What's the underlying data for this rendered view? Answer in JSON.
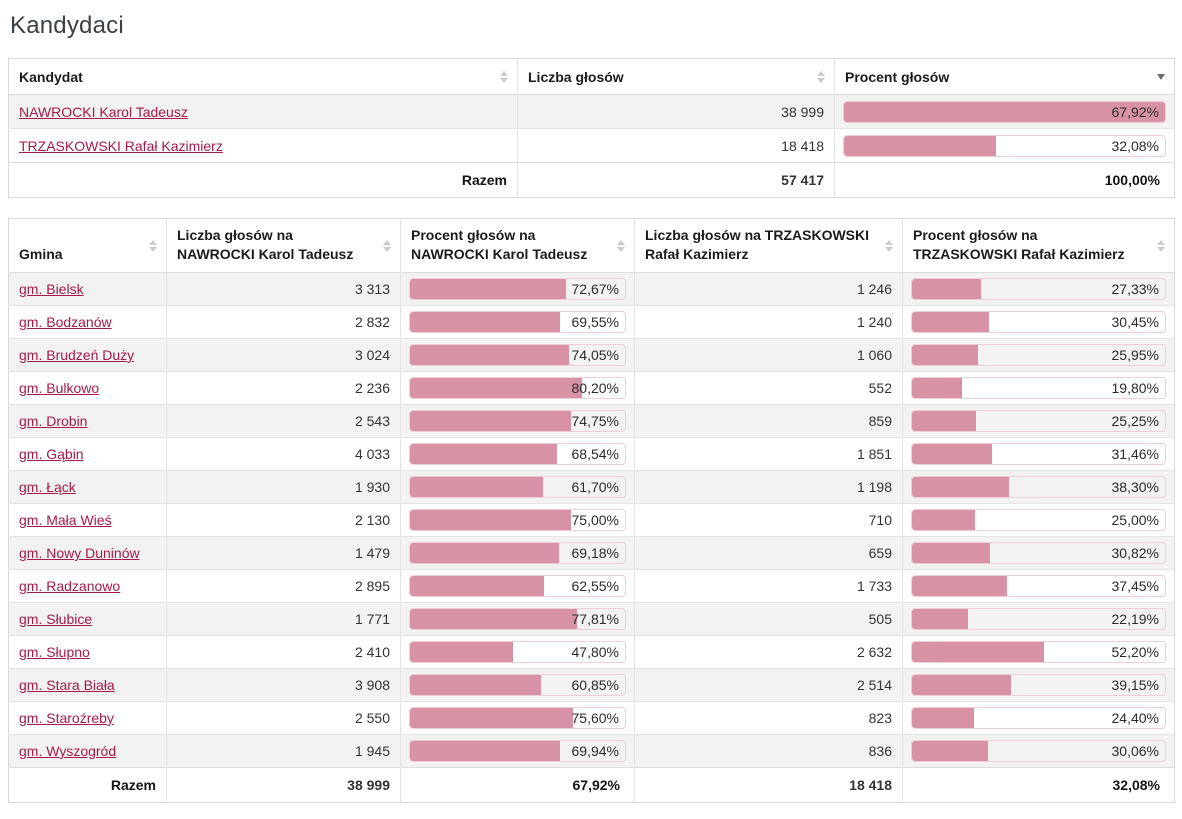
{
  "page": {
    "title": "Kandydaci"
  },
  "colors": {
    "link_accent": "#a6194b",
    "bar_fill": "#d892a5",
    "bar_border": "#f0cdd8",
    "row_stripe": "#f2f2f2",
    "table_border": "#d9d9d9",
    "sorted_arrow": "#6b6b6b",
    "unsorted_arrow": "#cccccc"
  },
  "candidates_table": {
    "columns": [
      {
        "label": "Kandydat",
        "sort": "none"
      },
      {
        "label": "Liczba głosów",
        "sort": "none"
      },
      {
        "label": "Procent głosów",
        "sort": "desc"
      }
    ],
    "rows": [
      {
        "name": "NAWROCKI Karol Tadeusz",
        "votes": "38 999",
        "percent": "67,92%",
        "bar": 100
      },
      {
        "name": "TRZASKOWSKI Rafał Kazimierz",
        "votes": "18 418",
        "percent": "32,08%",
        "bar": 47.23
      }
    ],
    "footer": {
      "label": "Razem",
      "votes": "57 417",
      "percent": "100,00%"
    }
  },
  "gmina_table": {
    "columns": [
      {
        "label": "Gmina",
        "sort": "none"
      },
      {
        "label": "Liczba głosów na NAWROCKI Karol Tadeusz",
        "sort": "none"
      },
      {
        "label": "Procent głosów na NAWROCKI Karol Tadeusz",
        "sort": "none"
      },
      {
        "label": "Liczba głosów na TRZASKOWSKI Rafał Kazimierz",
        "sort": "none"
      },
      {
        "label": "Procent głosów na TRZASKOWSKI Rafał Kazimierz",
        "sort": "none"
      }
    ],
    "rows": [
      {
        "name": "gm. Bielsk",
        "votes1": "3 313",
        "pct1": "72,67%",
        "bar1": 72.67,
        "votes2": "1 246",
        "pct2": "27,33%",
        "bar2": 27.33
      },
      {
        "name": "gm. Bodzanów",
        "votes1": "2 832",
        "pct1": "69,55%",
        "bar1": 69.55,
        "votes2": "1 240",
        "pct2": "30,45%",
        "bar2": 30.45
      },
      {
        "name": "gm. Brudzeń Duży",
        "votes1": "3 024",
        "pct1": "74,05%",
        "bar1": 74.05,
        "votes2": "1 060",
        "pct2": "25,95%",
        "bar2": 25.95
      },
      {
        "name": "gm. Bulkowo",
        "votes1": "2 236",
        "pct1": "80,20%",
        "bar1": 80.2,
        "votes2": "552",
        "pct2": "19,80%",
        "bar2": 19.8
      },
      {
        "name": "gm. Drobin",
        "votes1": "2 543",
        "pct1": "74,75%",
        "bar1": 74.75,
        "votes2": "859",
        "pct2": "25,25%",
        "bar2": 25.25
      },
      {
        "name": "gm. Gąbin",
        "votes1": "4 033",
        "pct1": "68,54%",
        "bar1": 68.54,
        "votes2": "1 851",
        "pct2": "31,46%",
        "bar2": 31.46
      },
      {
        "name": "gm. Łąck",
        "votes1": "1 930",
        "pct1": "61,70%",
        "bar1": 61.7,
        "votes2": "1 198",
        "pct2": "38,30%",
        "bar2": 38.3
      },
      {
        "name": "gm. Mała Wieś",
        "votes1": "2 130",
        "pct1": "75,00%",
        "bar1": 75.0,
        "votes2": "710",
        "pct2": "25,00%",
        "bar2": 25.0
      },
      {
        "name": "gm. Nowy Duninów",
        "votes1": "1 479",
        "pct1": "69,18%",
        "bar1": 69.18,
        "votes2": "659",
        "pct2": "30,82%",
        "bar2": 30.82
      },
      {
        "name": "gm. Radzanowo",
        "votes1": "2 895",
        "pct1": "62,55%",
        "bar1": 62.55,
        "votes2": "1 733",
        "pct2": "37,45%",
        "bar2": 37.45
      },
      {
        "name": "gm. Słubice",
        "votes1": "1 771",
        "pct1": "77,81%",
        "bar1": 77.81,
        "votes2": "505",
        "pct2": "22,19%",
        "bar2": 22.19
      },
      {
        "name": "gm. Słupno",
        "votes1": "2 410",
        "pct1": "47,80%",
        "bar1": 47.8,
        "votes2": "2 632",
        "pct2": "52,20%",
        "bar2": 52.2
      },
      {
        "name": "gm. Stara Biała",
        "votes1": "3 908",
        "pct1": "60,85%",
        "bar1": 60.85,
        "votes2": "2 514",
        "pct2": "39,15%",
        "bar2": 39.15
      },
      {
        "name": "gm. Staroźreby",
        "votes1": "2 550",
        "pct1": "75,60%",
        "bar1": 75.6,
        "votes2": "823",
        "pct2": "24,40%",
        "bar2": 24.4
      },
      {
        "name": "gm. Wyszogród",
        "votes1": "1 945",
        "pct1": "69,94%",
        "bar1": 69.94,
        "votes2": "836",
        "pct2": "30,06%",
        "bar2": 30.06
      }
    ],
    "footer": {
      "label": "Razem",
      "votes1": "38 999",
      "pct1": "67,92%",
      "votes2": "18 418",
      "pct2": "32,08%"
    }
  }
}
